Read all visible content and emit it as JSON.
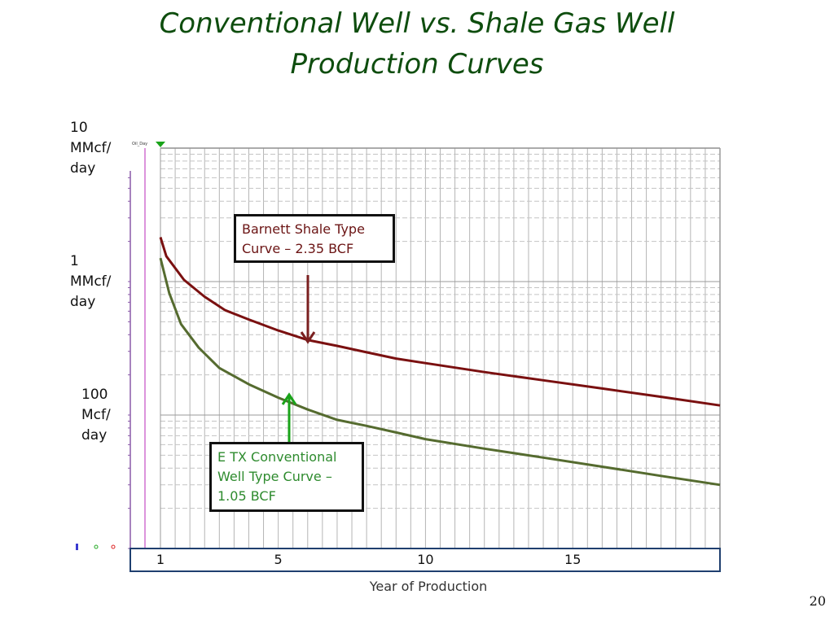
{
  "title_lines": [
    "Conventional Well vs. Shale Gas Well",
    "Production Curves"
  ],
  "page_number": "20",
  "annotations": {
    "marker_label": "Oil_Day",
    "shale_callout": [
      "Barnett Shale Type",
      "Curve – 2.35 BCF"
    ],
    "conventional_callout": [
      "E TX Conventional",
      "Well Type Curve –",
      "1.05 BCF"
    ]
  },
  "colors": {
    "shale_curve": "#7a1010",
    "conventional_curve": "#556b2f",
    "shale_arrow": "#7a1f1f",
    "conventional_arrow": "#1aa31a",
    "marker": "#1aa31a",
    "grid": "#b5b5b5",
    "axis_frame": "#1f3f6f"
  },
  "chart_data": {
    "type": "line",
    "xlabel": "Year of Production",
    "x_ticks": [
      1,
      5,
      10,
      15
    ],
    "xlim": [
      0,
      20
    ],
    "ylim": [
      10,
      10000
    ],
    "y_scale": "log",
    "y_ticks": [
      {
        "value": 10000,
        "label": [
          "10",
          "MMcf/",
          "day"
        ]
      },
      {
        "value": 1000,
        "label": [
          "1",
          "MMcf/",
          "day"
        ]
      },
      {
        "value": 100,
        "label": [
          "100",
          "Mcf/",
          "day"
        ]
      }
    ],
    "grid": true,
    "series": [
      {
        "name": "Barnett Shale Type Curve – 2.35 BCF",
        "color": "#7a1010",
        "x": [
          1,
          1.2,
          1.8,
          2.5,
          3.2,
          4,
          5,
          6,
          7,
          8,
          9,
          10,
          12,
          14,
          16,
          18,
          20
        ],
        "y": [
          2150,
          1550,
          1030,
          770,
          610,
          520,
          430,
          365,
          330,
          295,
          265,
          245,
          210,
          182,
          158,
          137,
          118
        ]
      },
      {
        "name": "E TX Conventional Well Type Curve – 1.05 BCF",
        "color": "#556b2f",
        "x": [
          1,
          1.3,
          1.7,
          2.3,
          3,
          4,
          5,
          6,
          7,
          8,
          9,
          10,
          12,
          14,
          16,
          18,
          20
        ],
        "y": [
          1500,
          820,
          480,
          320,
          225,
          170,
          135,
          110,
          92,
          83,
          74,
          66,
          56,
          48,
          41,
          35,
          30
        ]
      }
    ]
  }
}
